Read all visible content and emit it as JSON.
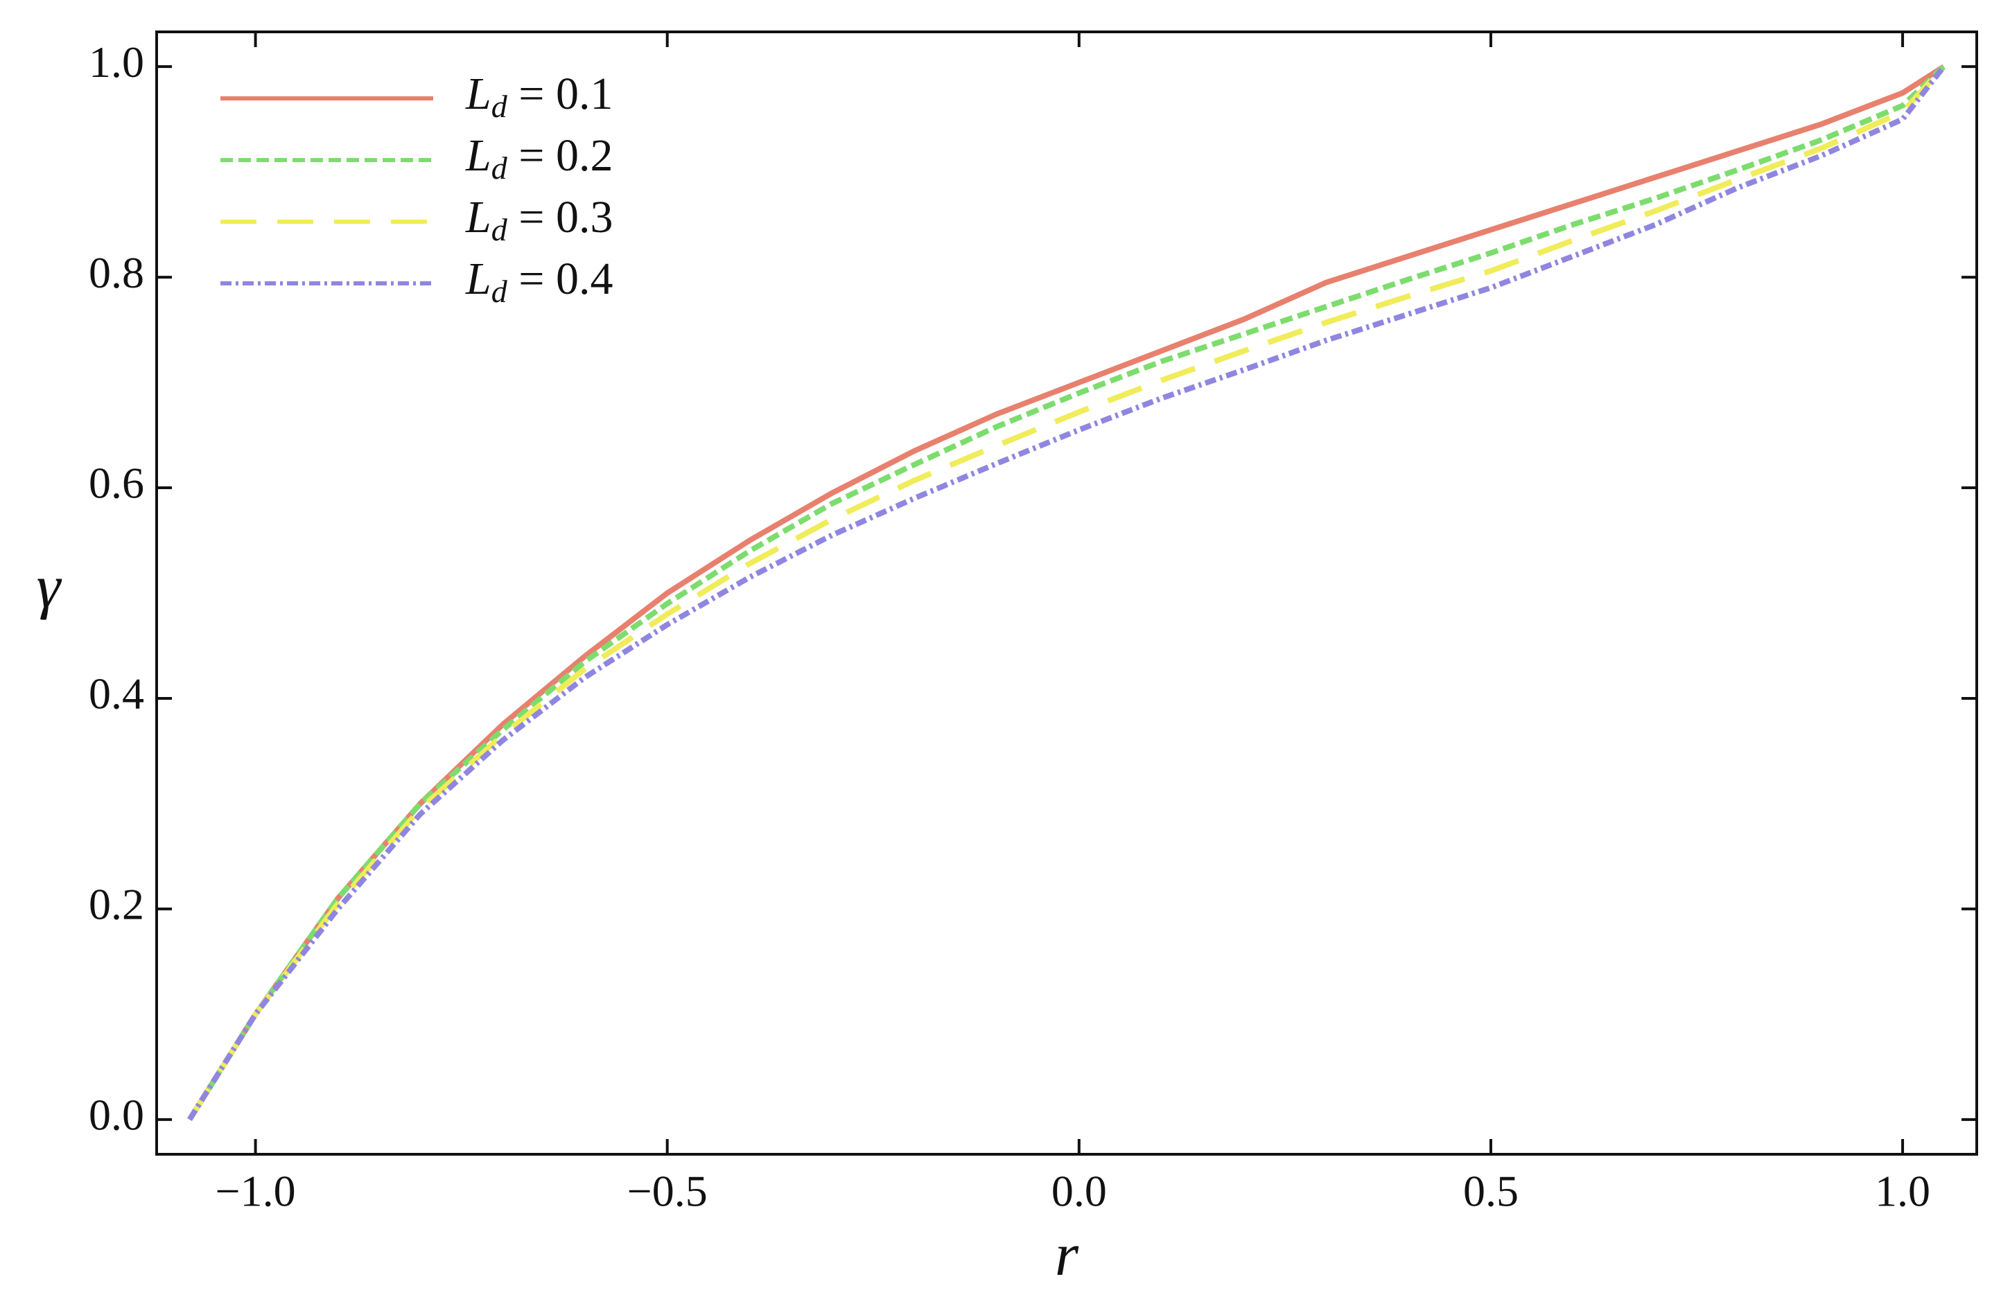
{
  "chart_data": {
    "type": "line",
    "x_label": "r",
    "y_label": "γ",
    "x": [
      -1.08,
      -1.0,
      -0.9,
      -0.8,
      -0.7,
      -0.6,
      -0.5,
      -0.4,
      -0.3,
      -0.2,
      -0.1,
      0.0,
      0.1,
      0.2,
      0.3,
      0.4,
      0.5,
      0.6,
      0.7,
      0.8,
      0.9,
      1.0,
      1.05
    ],
    "series": [
      {
        "name": "Ld = 0.1",
        "color": "#e8806e",
        "dash": "solid",
        "values": [
          0,
          0.1,
          0.21,
          0.3,
          0.375,
          0.44,
          0.5,
          0.55,
          0.595,
          0.635,
          0.67,
          0.7,
          0.73,
          0.76,
          0.795,
          0.82,
          0.845,
          0.87,
          0.895,
          0.92,
          0.945,
          0.975,
          1.0
        ]
      },
      {
        "name": "Ld = 0.2",
        "color": "#7ddc6e",
        "dash": "short",
        "values": [
          0,
          0.1,
          0.21,
          0.3,
          0.37,
          0.435,
          0.49,
          0.54,
          0.585,
          0.622,
          0.658,
          0.69,
          0.72,
          0.746,
          0.772,
          0.798,
          0.823,
          0.85,
          0.875,
          0.902,
          0.93,
          0.963,
          1.0
        ]
      },
      {
        "name": "Ld = 0.3",
        "color": "#f0ec5a",
        "dash": "long",
        "values": [
          0,
          0.1,
          0.205,
          0.295,
          0.365,
          0.428,
          0.48,
          0.528,
          0.57,
          0.607,
          0.64,
          0.672,
          0.702,
          0.73,
          0.757,
          0.782,
          0.806,
          0.835,
          0.863,
          0.893,
          0.922,
          0.957,
          1.0
        ]
      },
      {
        "name": "Ld = 0.4",
        "color": "#8f86e0",
        "dash": "dotdash",
        "values": [
          0,
          0.1,
          0.2,
          0.29,
          0.36,
          0.42,
          0.47,
          0.515,
          0.555,
          0.59,
          0.623,
          0.655,
          0.685,
          0.712,
          0.74,
          0.765,
          0.79,
          0.82,
          0.85,
          0.885,
          0.915,
          0.95,
          1.0
        ]
      }
    ],
    "xlim": [
      -1.12,
      1.09
    ],
    "ylim": [
      -0.033,
      1.033
    ],
    "xticks": [
      {
        "value": -1.0,
        "label": "−1.0"
      },
      {
        "value": -0.5,
        "label": "−0.5"
      },
      {
        "value": 0,
        "label": "0.0"
      },
      0.5,
      {
        "value": 1,
        "label": "1.0"
      }
    ],
    "yticks": [
      {
        "value": 0,
        "label": "0.0"
      },
      0.2,
      0.4,
      0.6,
      0.8,
      {
        "value": 1,
        "label": "1.0"
      }
    ],
    "legend": "top-left",
    "grid": false
  }
}
